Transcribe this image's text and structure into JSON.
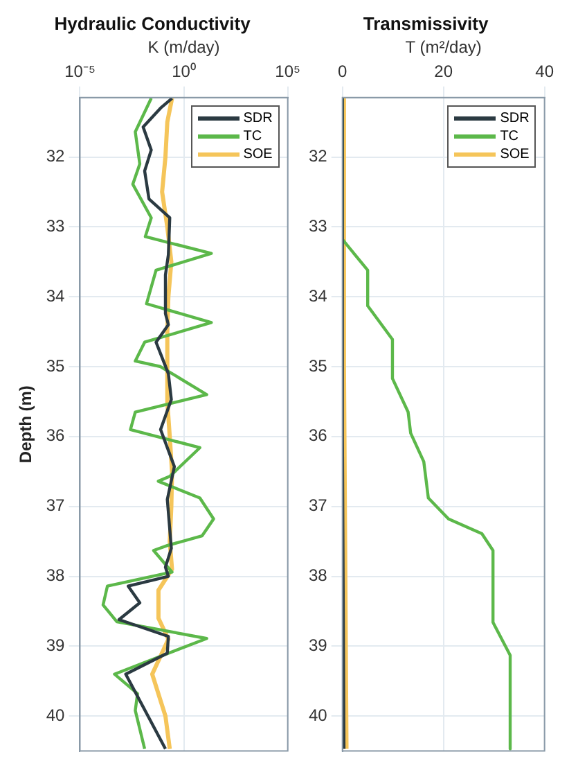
{
  "chart_data": [
    {
      "type": "line",
      "title": "Hydraulic Conductivity",
      "xlabel": "K (m/day)",
      "ylabel": "Depth (m)",
      "log": "x",
      "xlim": [
        1e-05,
        100000
      ],
      "xticks": [
        {
          "value": 1e-05,
          "label": "10⁻⁵"
        },
        {
          "value": 1,
          "label": "10⁰"
        },
        {
          "value": 100000,
          "label": "10⁵"
        }
      ],
      "ylim": [
        40.5,
        31.15
      ],
      "yticks": [
        32,
        33,
        34,
        35,
        36,
        37,
        38,
        39,
        40
      ],
      "grid": true,
      "legend": "top right",
      "series": [
        {
          "name": "SDR",
          "color": "#2b3a42",
          "x": [
            0.27,
            0.076,
            0.011,
            0.027,
            0.013,
            0.021,
            0.21,
            0.18,
            0.13,
            0.13,
            0.18,
            0.046,
            0.18,
            0.25,
            0.076,
            0.35,
            0.16,
            0.25,
            0.13,
            0.18,
            0.0021,
            0.0076,
            0.00076,
            0.18,
            0.16,
            0.0016,
            0.13
          ],
          "values": [
            31.16,
            31.3,
            31.57,
            31.9,
            32.2,
            32.6,
            32.87,
            33.4,
            33.69,
            34.24,
            34.4,
            34.65,
            35.1,
            35.47,
            35.9,
            36.43,
            36.9,
            37.6,
            37.87,
            38.0,
            38.14,
            38.38,
            38.62,
            38.86,
            39.1,
            39.4,
            40.47
          ]
        },
        {
          "name": "TC",
          "color": "#5cb84a",
          "x": [
            0.027,
            0.0046,
            0.0076,
            0.0035,
            0.027,
            0.014,
            21,
            0.046,
            0.016,
            21,
            0.013,
            0.0046,
            0.076,
            12.6,
            0.0046,
            0.0027,
            5.9,
            0.21,
            0.059,
            5.9,
            27,
            7.6,
            0.16,
            0.035,
            0.27,
            0.00021,
            0.00013,
            0.0006,
            12.6,
            0.00046,
            0.0059,
            0.0046,
            0.013
          ],
          "values": [
            31.16,
            31.64,
            32.1,
            32.39,
            32.87,
            33.14,
            33.38,
            33.62,
            34.1,
            34.37,
            34.65,
            34.92,
            35.0,
            35.4,
            35.65,
            35.9,
            36.16,
            36.57,
            36.64,
            36.88,
            37.18,
            37.42,
            37.56,
            37.63,
            37.94,
            38.14,
            38.41,
            38.65,
            38.89,
            39.4,
            39.68,
            39.92,
            40.47
          ]
        },
        {
          "name": "SOE",
          "color": "#f5c55a",
          "x": [
            0.27,
            0.16,
            0.13,
            0.09,
            0.16,
            0.25,
            0.18,
            0.16,
            0.16,
            0.21,
            0.27,
            0.25,
            0.21,
            0.27,
            0.06,
            0.06,
            0.18,
            0.03,
            0.13,
            0.21
          ],
          "values": [
            31.16,
            31.5,
            32,
            32.5,
            33,
            33.5,
            34,
            34.5,
            35.5,
            36,
            36.5,
            37,
            37.5,
            37.9,
            38.2,
            38.6,
            38.9,
            39.4,
            40,
            40.47
          ]
        }
      ]
    },
    {
      "type": "line",
      "title": "Transmissivity",
      "xlabel": "T (m²/day)",
      "xlim": [
        0,
        40
      ],
      "xticks": [
        0,
        20,
        40
      ],
      "ylim": [
        40.5,
        31.15
      ],
      "yticks": [
        32,
        33,
        34,
        35,
        36,
        37,
        38,
        39,
        40
      ],
      "grid": true,
      "legend": "top right",
      "series": [
        {
          "name": "SDR",
          "color": "#2b3a42",
          "x": [
            0,
            0,
            0.3
          ],
          "values": [
            31.16,
            36,
            40.47
          ]
        },
        {
          "name": "TC",
          "color": "#5cb84a",
          "x": [
            0,
            0,
            5,
            5,
            9.9,
            9.9,
            13,
            13.5,
            16.1,
            17,
            21,
            27.6,
            29.8,
            29.8,
            33.2,
            33.2
          ],
          "values": [
            31.16,
            33.18,
            33.62,
            34.13,
            34.61,
            35.17,
            35.65,
            35.95,
            36.36,
            36.88,
            37.18,
            37.39,
            37.63,
            38.66,
            39.13,
            40.47
          ]
        },
        {
          "name": "SOE",
          "color": "#f5c55a",
          "x": [
            0.3,
            0.3,
            0.8
          ],
          "values": [
            31.16,
            35,
            40.47
          ]
        }
      ]
    }
  ]
}
